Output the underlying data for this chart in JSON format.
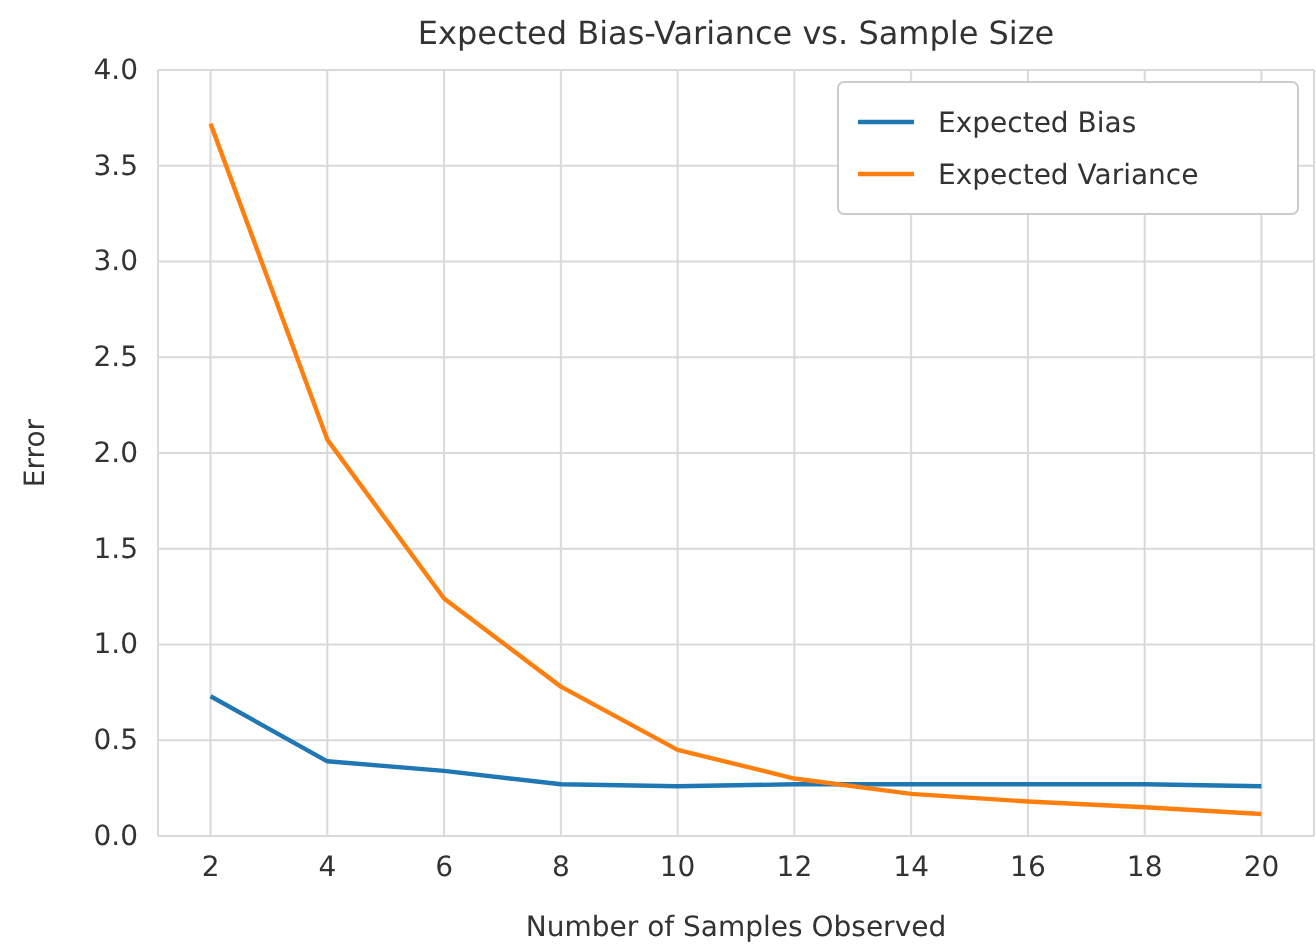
{
  "chart_data": {
    "type": "line",
    "title": "Expected Bias-Variance vs. Sample Size",
    "xlabel": "Number of Samples Observed",
    "ylabel": "Error",
    "x": [
      2,
      4,
      6,
      8,
      10,
      12,
      14,
      16,
      18,
      20
    ],
    "series": [
      {
        "name": "Expected Bias",
        "color": "#1f77b4",
        "values": [
          0.73,
          0.39,
          0.34,
          0.27,
          0.26,
          0.27,
          0.27,
          0.27,
          0.27,
          0.26
        ]
      },
      {
        "name": "Expected Variance",
        "color": "#ff7f0e",
        "values": [
          3.72,
          2.07,
          1.24,
          0.78,
          0.45,
          0.3,
          0.22,
          0.18,
          0.15,
          0.115
        ]
      }
    ],
    "xlim": [
      1.1,
      20.9
    ],
    "xticks": [
      2,
      4,
      6,
      8,
      10,
      12,
      14,
      16,
      18,
      20
    ],
    "ylim": [
      0,
      4
    ],
    "yticks": [
      {
        "value": 0,
        "label": "0.0"
      },
      {
        "value": 0.5,
        "label": "0.5"
      },
      {
        "value": 1,
        "label": "1.0"
      },
      {
        "value": 1.5,
        "label": "1.5"
      },
      {
        "value": 2,
        "label": "2.0"
      },
      {
        "value": 2.5,
        "label": "2.5"
      },
      {
        "value": 3,
        "label": "3.0"
      },
      {
        "value": 3.5,
        "label": "3.5"
      },
      {
        "value": 4,
        "label": "4.0"
      }
    ],
    "grid": true,
    "legend": "top right",
    "marker": "none",
    "line_style": "solid"
  }
}
